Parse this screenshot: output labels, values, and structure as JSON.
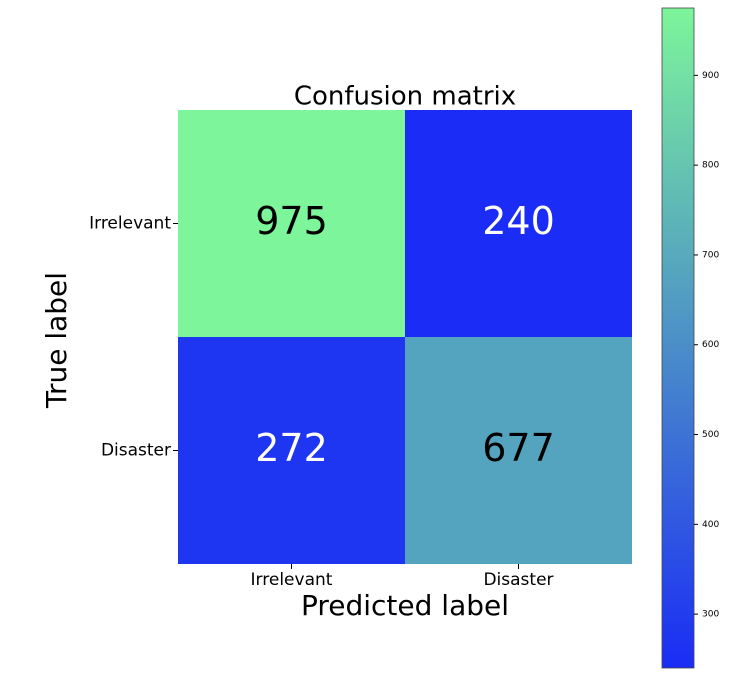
{
  "chart_data": {
    "type": "heatmap",
    "title": "Confusion matrix",
    "x_label": "Predicted label",
    "y_label": "True label",
    "x_categories": [
      "Irrelevant",
      "Disaster"
    ],
    "y_categories": [
      "Irrelevant",
      "Disaster"
    ],
    "values": [
      [
        975,
        240
      ],
      [
        272,
        677
      ]
    ],
    "colormap": [
      "#1a2cf5",
      "#7df59a"
    ],
    "clim": [
      240,
      975
    ],
    "cticks": [
      300,
      400,
      500,
      600,
      700,
      800,
      900
    ]
  }
}
